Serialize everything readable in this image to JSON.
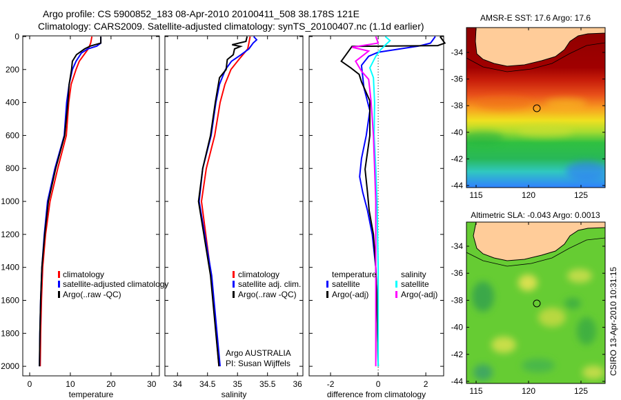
{
  "header": {
    "title_line1": "Argo profile: CS 5900852_183 08-Apr-2010 20100411_508 38.178S 121E",
    "title_line2": "Climatology: CARS2009. Satellite-adjusted climatology: synTS_20100407.nc (1.1d earlier)"
  },
  "colors": {
    "climatology": "#ff0000",
    "satellite": "#0000ff",
    "argo": "#000000",
    "salinity_satellite": "#00ffff",
    "salinity_argo": "#ff00ff"
  },
  "side_label": "CSIRO 13-Apr-2010 10:31:15",
  "chart_data": [
    {
      "type": "line",
      "title": "",
      "xlabel": "temperature",
      "ylabel": "",
      "xlim": [
        -1.7,
        31.9
      ],
      "ylim": [
        2058,
        -4
      ],
      "xticks": [
        "0",
        "10",
        "20",
        "30"
      ],
      "xtick_values": [
        0,
        10,
        20,
        30
      ],
      "yticks": [
        "0",
        "200",
        "400",
        "600",
        "800",
        "1000",
        "1200",
        "1400",
        "1600",
        "1800",
        "2000"
      ],
      "ytick_values": [
        0,
        200,
        400,
        600,
        800,
        1000,
        1200,
        1400,
        1600,
        1800,
        2000
      ],
      "legend": [
        "climatology",
        "satellite-adjusted climatology",
        "Argo(..raw -QC)"
      ],
      "series": [
        {
          "name": "climatology",
          "color": "#ff0000",
          "depth": [
            0,
            40,
            75,
            150,
            200,
            290,
            400,
            600,
            800,
            1000,
            1200,
            1400,
            1600,
            1800,
            2000
          ],
          "values": [
            15.3,
            15.0,
            14.4,
            12.2,
            11.4,
            10.2,
            9.6,
            9.0,
            6.9,
            5.0,
            3.9,
            3.2,
            2.9,
            2.7,
            2.6
          ]
        },
        {
          "name": "satellite-adjusted climatology",
          "color": "#0000ff",
          "depth": [
            0,
            40,
            58,
            75,
            100,
            150,
            200,
            290,
            400,
            600,
            800,
            1000,
            1200,
            1400,
            1600,
            1800,
            2000
          ],
          "values": [
            17.5,
            17.5,
            16.5,
            14.3,
            12.7,
            11.4,
            10.5,
            9.7,
            9.1,
            8.5,
            6.2,
            4.4,
            3.6,
            3.0,
            2.7,
            2.5,
            2.4
          ]
        },
        {
          "name": "Argo(..raw -QC)",
          "color": "#000000",
          "depth": [
            0,
            40,
            58,
            75,
            110,
            150,
            200,
            290,
            400,
            600,
            800,
            1000,
            1200,
            1400,
            1600,
            1800,
            2000
          ],
          "values": [
            17.5,
            17.5,
            14.9,
            13.5,
            11.5,
            10.5,
            10.3,
            9.7,
            9.4,
            8.6,
            6.4,
            4.6,
            3.7,
            3.0,
            2.7,
            2.5,
            2.4
          ]
        }
      ]
    },
    {
      "type": "line",
      "xlabel": "salinity",
      "xlim": [
        33.79,
        36.09
      ],
      "ylim": [
        2058,
        -4
      ],
      "xticks": [
        "34",
        "34.5",
        "35",
        "35.5",
        "36"
      ],
      "xtick_values": [
        34,
        34.5,
        35,
        35.5,
        36
      ],
      "legend": [
        "climatology",
        "satellite adj. clim.",
        "Argo(..raw -QC)"
      ],
      "annotations": [
        "Argo AUSTRALIA",
        "PI: Susan Wijffels"
      ],
      "series": [
        {
          "name": "climatology",
          "color": "#ff0000",
          "depth": [
            0,
            40,
            75,
            110,
            150,
            200,
            290,
            400,
            600,
            800,
            1000,
            1450,
            2000
          ],
          "values": [
            35.21,
            35.19,
            35.17,
            35.09,
            35.0,
            34.89,
            34.79,
            34.71,
            34.62,
            34.48,
            34.4,
            34.56,
            34.69
          ]
        },
        {
          "name": "satellite adj. clim.",
          "color": "#0000ff",
          "depth": [
            0,
            20,
            40,
            75,
            110,
            150,
            200,
            290,
            400,
            600,
            800,
            1000,
            1450,
            2000
          ],
          "values": [
            35.27,
            35.32,
            35.26,
            35.19,
            35.06,
            34.9,
            34.8,
            34.7,
            34.64,
            34.56,
            34.42,
            34.36,
            34.57,
            34.71
          ]
        },
        {
          "name": "Argo(..raw -QC)",
          "color": "#000000",
          "depth": [
            0,
            30,
            50,
            60,
            75,
            110,
            140,
            200,
            250,
            400,
            600,
            800,
            1000,
            1450,
            2000
          ],
          "values": [
            35.16,
            35.14,
            34.91,
            35.05,
            34.95,
            34.93,
            34.83,
            34.81,
            34.7,
            34.63,
            34.55,
            34.42,
            34.35,
            34.55,
            34.69
          ]
        }
      ]
    },
    {
      "type": "line",
      "xlabel": "difference from climatology",
      "xlim": [
        -2.9,
        2.75
      ],
      "ylim": [
        2058,
        -4
      ],
      "xticks": [
        "-2",
        "0",
        "2"
      ],
      "xtick_values": [
        -2,
        0,
        2
      ],
      "legend_headers": [
        "temperature",
        "salinity"
      ],
      "legend": [
        "satellite",
        "Argo(-adj)",
        "satellite",
        "Argo(-adj)"
      ],
      "series": [
        {
          "name": "temperature satellite",
          "color": "#0000ff",
          "depth": [
            0,
            40,
            58,
            95,
            120,
            175,
            310,
            450,
            600,
            740,
            850,
            945,
            1055,
            1200,
            1400,
            1600,
            2000
          ],
          "values": [
            2.4,
            2.2,
            1.7,
            0,
            -0.4,
            -0.7,
            -0.6,
            -0.35,
            -0.5,
            -0.7,
            -0.78,
            -0.65,
            -0.45,
            -0.25,
            -0.1,
            -0.05,
            0
          ]
        },
        {
          "name": "temperature Argo(-adj)",
          "color": "#000000",
          "depth": [
            0,
            40,
            55,
            60,
            100,
            150,
            190,
            230,
            275,
            390,
            600,
            805,
            945,
            1055,
            1200,
            1400,
            1600,
            2000
          ],
          "values": [
            2.6,
            2.8,
            2.5,
            -1.1,
            -1.3,
            -1.55,
            -1.15,
            -0.8,
            -0.7,
            -0.35,
            -0.35,
            -0.55,
            -0.45,
            -0.38,
            -0.2,
            -0.1,
            -0.05,
            0
          ]
        },
        {
          "name": "salinity satellite",
          "color": "#00ffff",
          "depth": [
            0,
            25,
            52,
            80,
            120,
            190,
            250,
            400,
            600,
            800,
            1000,
            1400,
            2000
          ],
          "values": [
            0.3,
            0.5,
            0.3,
            0.1,
            -0.1,
            -0.35,
            -0.2,
            -0.15,
            -0.17,
            -0.1,
            -0.05,
            0,
            0
          ]
        },
        {
          "name": "salinity Argo(-adj)",
          "color": "#ff00ff",
          "depth": [
            0,
            40,
            65,
            88,
            150,
            210,
            260,
            390,
            600,
            800,
            1000,
            1400,
            2000
          ],
          "values": [
            -0.1,
            0,
            -1.1,
            -0.4,
            -0.95,
            -0.7,
            -0.4,
            -0.3,
            -0.2,
            -0.15,
            -0.1,
            -0.1,
            -0.1
          ]
        }
      ]
    },
    {
      "type": "heatmap",
      "title": "AMSR-E SST: 17.6 Argo: 17.6",
      "xticks": [
        "115",
        "120",
        "125"
      ],
      "yticks": [
        "-34",
        "-36",
        "-38",
        "-40",
        "-42",
        "-44"
      ],
      "marker": {
        "lon": 121,
        "lat": -38.18
      }
    },
    {
      "type": "heatmap",
      "title": "Altimetric SLA: -0.043 Argo: 0.0013",
      "xticks": [
        "115",
        "120",
        "125"
      ],
      "yticks": [
        "-34",
        "-36",
        "-38",
        "-40",
        "-42",
        "-44"
      ],
      "marker": {
        "lon": 121,
        "lat": -38.18
      }
    }
  ]
}
